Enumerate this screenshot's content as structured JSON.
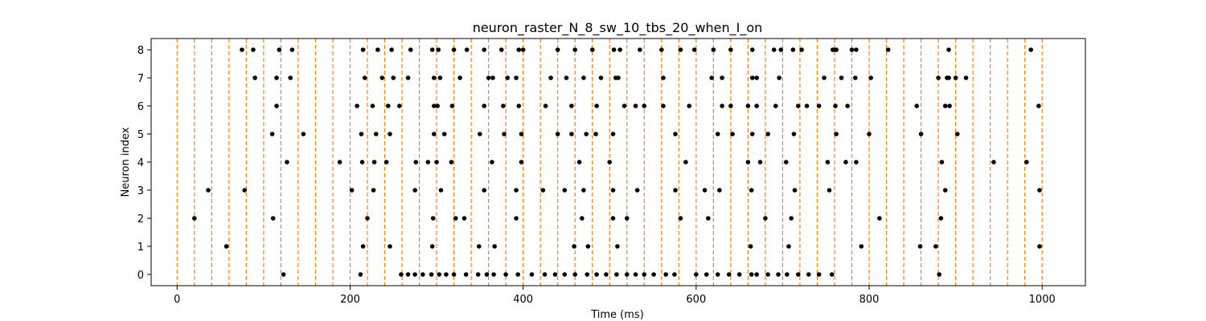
{
  "chart_data": {
    "type": "scatter",
    "title": "neuron_raster_N_8_sw_10_tbs_20_when_I_on",
    "xlabel": "Time (ms)",
    "ylabel": "Neuron index",
    "xlim": [
      -30,
      1050
    ],
    "ylim": [
      -0.4,
      8.4
    ],
    "x_ticks": [
      0,
      200,
      400,
      600,
      800,
      1000
    ],
    "y_ticks": [
      0,
      1,
      2,
      3,
      4,
      5,
      6,
      7,
      8
    ],
    "grid": false,
    "marker_color": "#000000",
    "vline_color": "#ff7f0e",
    "vlines": [
      0,
      20,
      40,
      60,
      80,
      100,
      120,
      140,
      160,
      180,
      200,
      220,
      240,
      260,
      280,
      300,
      320,
      340,
      360,
      380,
      400,
      420,
      440,
      460,
      480,
      500,
      520,
      540,
      560,
      580,
      600,
      620,
      640,
      660,
      680,
      700,
      720,
      740,
      760,
      780,
      800,
      820,
      840,
      860,
      880,
      900,
      920,
      940,
      960,
      980,
      1000
    ],
    "spikes": [
      {
        "neuron": 8,
        "times": [
          75,
          88,
          118,
          133,
          215,
          232,
          248,
          270,
          295,
          302,
          320,
          335,
          355,
          375,
          395,
          400,
          440,
          460,
          480,
          505,
          512,
          535,
          560,
          582,
          598,
          620,
          640,
          665,
          690,
          698,
          712,
          722,
          758,
          760,
          762,
          780,
          785,
          822,
          892,
          987
        ]
      },
      {
        "neuron": 7,
        "times": [
          90,
          115,
          131,
          217,
          237,
          250,
          267,
          297,
          304,
          327,
          360,
          365,
          382,
          392,
          432,
          450,
          470,
          490,
          507,
          510,
          562,
          618,
          630,
          665,
          670,
          696,
          748,
          768,
          784,
          802,
          880,
          890,
          892,
          900,
          912
        ]
      },
      {
        "neuron": 6,
        "times": [
          115,
          208,
          226,
          244,
          257,
          297,
          301,
          318,
          355,
          377,
          395,
          426,
          456,
          485,
          517,
          530,
          540,
          562,
          592,
          630,
          640,
          660,
          670,
          692,
          718,
          728,
          742,
          761,
          775,
          855,
          888,
          893,
          996
        ]
      },
      {
        "neuron": 5,
        "times": [
          110,
          146,
          213,
          230,
          246,
          297,
          309,
          350,
          378,
          398,
          440,
          456,
          473,
          484,
          504,
          576,
          625,
          642,
          665,
          683,
          713,
          762,
          800,
          860,
          902
        ]
      },
      {
        "neuron": 4,
        "times": [
          127,
          188,
          214,
          228,
          242,
          276,
          290,
          300,
          317,
          364,
          398,
          465,
          500,
          588,
          660,
          674,
          704,
          752,
          773,
          785,
          884,
          944,
          982
        ]
      },
      {
        "neuron": 3,
        "times": [
          36,
          78,
          202,
          227,
          275,
          305,
          355,
          392,
          423,
          448,
          470,
          504,
          532,
          576,
          610,
          627,
          664,
          714,
          754,
          888,
          997
        ]
      },
      {
        "neuron": 2,
        "times": [
          20,
          111,
          220,
          296,
          322,
          332,
          392,
          468,
          504,
          520,
          582,
          614,
          680,
          710,
          812,
          883
        ]
      },
      {
        "neuron": 1,
        "times": [
          57,
          215,
          246,
          295,
          349,
          367,
          459,
          475,
          509,
          663,
          707,
          791,
          859,
          877,
          997
        ]
      },
      {
        "neuron": 0,
        "times": [
          123,
          212,
          259,
          267,
          275,
          284,
          294,
          303,
          311,
          320,
          334,
          348,
          358,
          366,
          380,
          394,
          410,
          425,
          437,
          448,
          460,
          474,
          485,
          496,
          508,
          520,
          530,
          540,
          551,
          565,
          575,
          600,
          612,
          625,
          638,
          650,
          664,
          670,
          683,
          695,
          705,
          718,
          730,
          742,
          757,
          881
        ]
      }
    ]
  }
}
